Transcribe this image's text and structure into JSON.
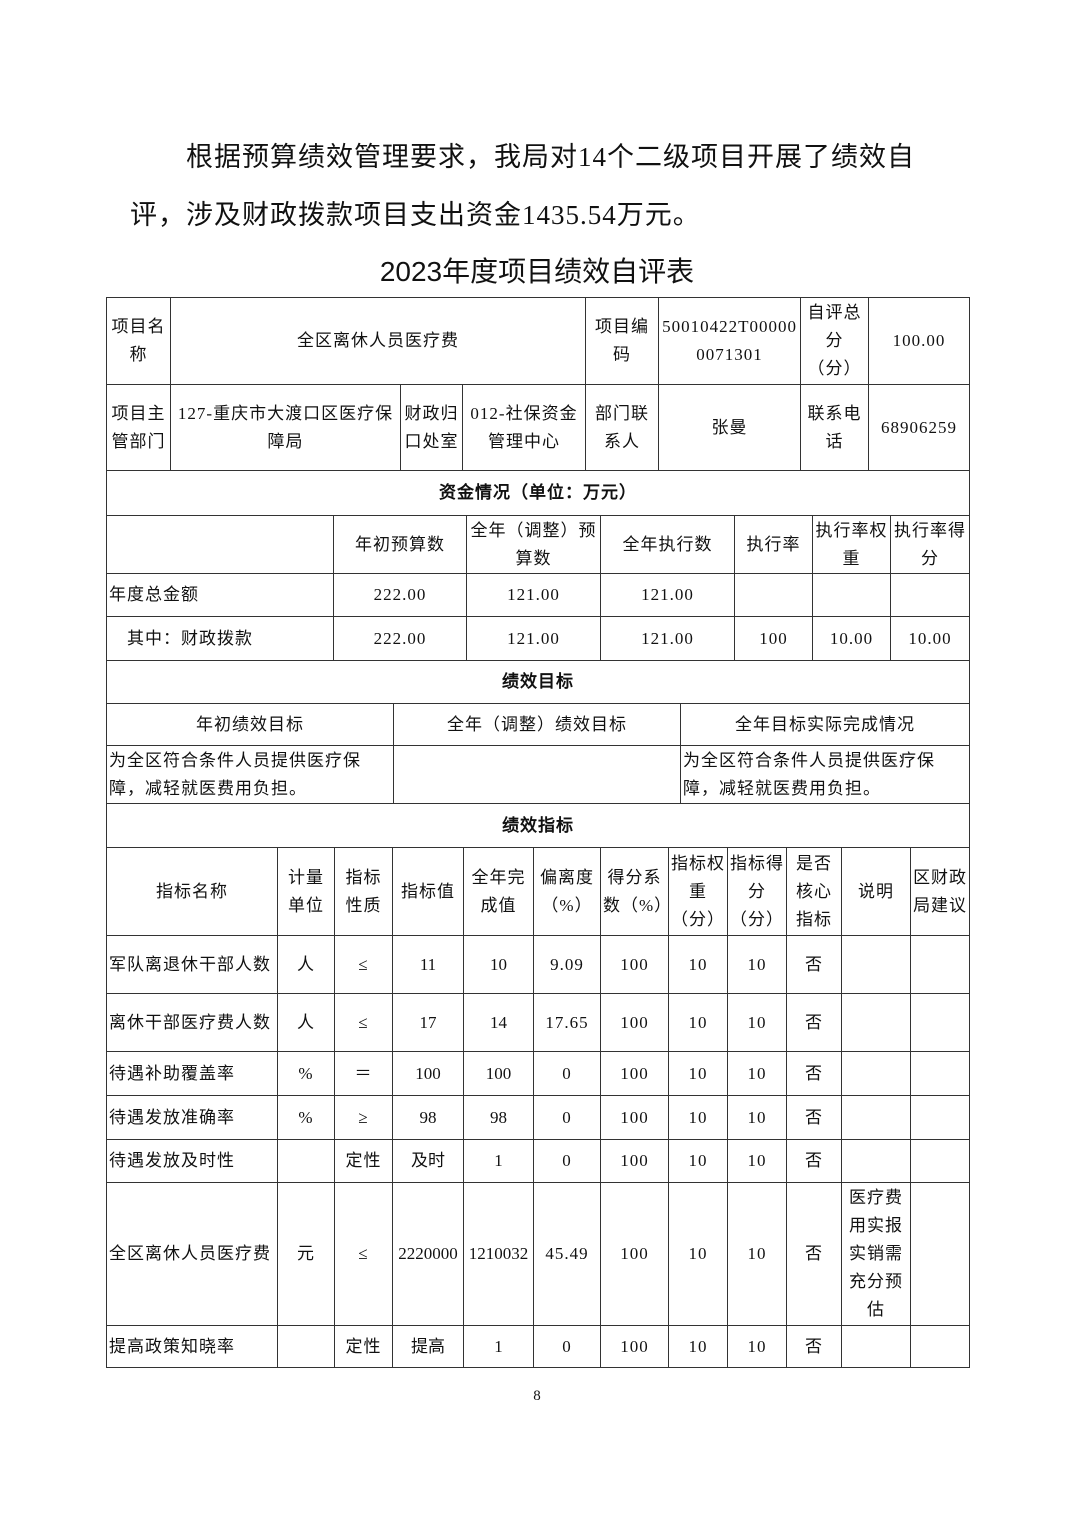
{
  "intro": "根据预算绩效管理要求，我局对14个二级项目开展了绩效自评，涉及财政拨款项目支出资金1435.54万元。",
  "title": "2023年度项目绩效自评表",
  "info": {
    "name_label": "项目名称",
    "name": "全区离休人员医疗费",
    "code_label": "项目编码",
    "code": "50010422T000000071301",
    "score_label": "自评总分（分）",
    "score": "100.00",
    "dept_label": "项目主管部门",
    "dept": "127-重庆市大渡口区医疗保障局",
    "office_label": "财政归口处室",
    "office": "012-社保资金管理中心",
    "contact_label": "部门联系人",
    "contact": "张曼",
    "phone_label": "联系电话",
    "phone": "68906259"
  },
  "funds": {
    "section": "资金情况（单位：万元）",
    "headers": [
      "",
      "年初预算数",
      "全年（调整）预算数",
      "全年执行数",
      "执行率",
      "执行率权重",
      "执行率得分"
    ],
    "rows": [
      [
        "年度总金额",
        "222.00",
        "121.00",
        "121.00",
        "",
        "",
        ""
      ],
      [
        "其中：财政拨款",
        "222.00",
        "121.00",
        "121.00",
        "100",
        "10.00",
        "10.00"
      ]
    ]
  },
  "goals": {
    "section": "绩效目标",
    "headers": [
      "年初绩效目标",
      "全年（调整）绩效目标",
      "全年目标实际完成情况"
    ],
    "values": [
      "为全区符合条件人员提供医疗保障，减轻就医费用负担。",
      "",
      "为全区符合条件人员提供医疗保障，减轻就医费用负担。"
    ]
  },
  "indicators": {
    "section": "绩效指标",
    "headers": [
      "指标名称",
      "计量单位",
      "指标性质",
      "指标值",
      "全年完成值",
      "偏离度（%）",
      "得分系数（%）",
      "指标权重（分）",
      "指标得分（分）",
      "是否核心指标",
      "说明",
      "区财政局建议"
    ],
    "rows": [
      [
        "军队离退休干部人数",
        "人",
        "≤",
        "11",
        "10",
        "9.09",
        "100",
        "10",
        "10",
        "否",
        "",
        ""
      ],
      [
        "离休干部医疗费人数",
        "人",
        "≤",
        "17",
        "14",
        "17.65",
        "100",
        "10",
        "10",
        "否",
        "",
        ""
      ],
      [
        "待遇补助覆盖率",
        "%",
        "＝",
        "100",
        "100",
        "0",
        "100",
        "10",
        "10",
        "否",
        "",
        ""
      ],
      [
        "待遇发放准确率",
        "%",
        "≥",
        "98",
        "98",
        "0",
        "100",
        "10",
        "10",
        "否",
        "",
        ""
      ],
      [
        "待遇发放及时性",
        "",
        "定性",
        "及时",
        "1",
        "0",
        "100",
        "10",
        "10",
        "否",
        "",
        ""
      ],
      [
        "全区离休人员医疗费",
        "元",
        "≤",
        "2220000",
        "1210032",
        "45.49",
        "100",
        "10",
        "10",
        "否",
        "医疗费用实报实销需充分预估",
        ""
      ],
      [
        "提高政策知晓率",
        "",
        "定性",
        "提高",
        "1",
        "0",
        "100",
        "10",
        "10",
        "否",
        "",
        ""
      ]
    ]
  },
  "page_number": "8"
}
